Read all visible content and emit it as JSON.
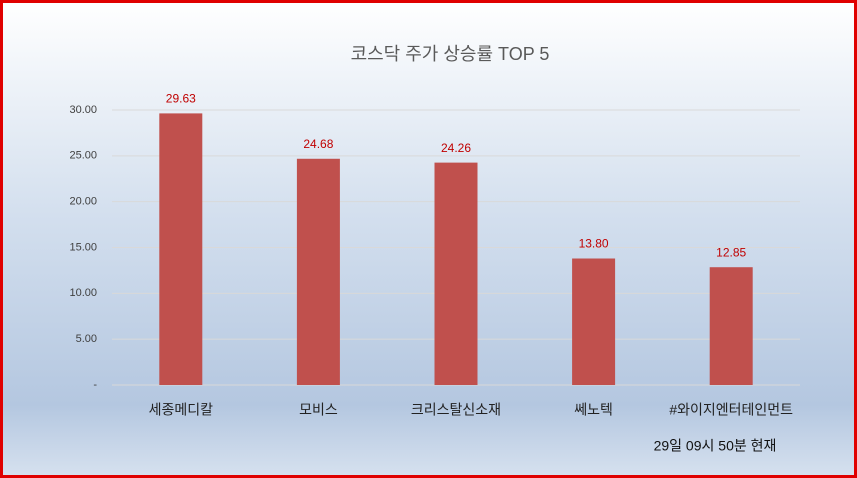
{
  "chart_data": {
    "type": "bar",
    "title": "코스닥 주가 상승률 TOP 5",
    "categories": [
      "세종메디칼",
      "모비스",
      "크리스탈신소재",
      "쎄노텍",
      "#와이지엔터테인먼트"
    ],
    "values": [
      29.63,
      24.68,
      24.26,
      13.8,
      12.85
    ],
    "value_labels": [
      "29.63",
      "24.68",
      "24.26",
      "13.80",
      "12.85"
    ],
    "color": "#c0504d",
    "ylim": [
      0,
      30
    ],
    "yticks": [
      {
        "value": 0,
        "label": "-"
      },
      {
        "value": 5,
        "label": "5.00"
      },
      {
        "value": 10,
        "label": "10.00"
      },
      {
        "value": 15,
        "label": "15.00"
      },
      {
        "value": 20,
        "label": "20.00"
      },
      {
        "value": 25,
        "label": "25.00"
      },
      {
        "value": 30,
        "label": "30.00"
      }
    ],
    "grid": true,
    "annotation": "29일 09시  50분 현재"
  }
}
